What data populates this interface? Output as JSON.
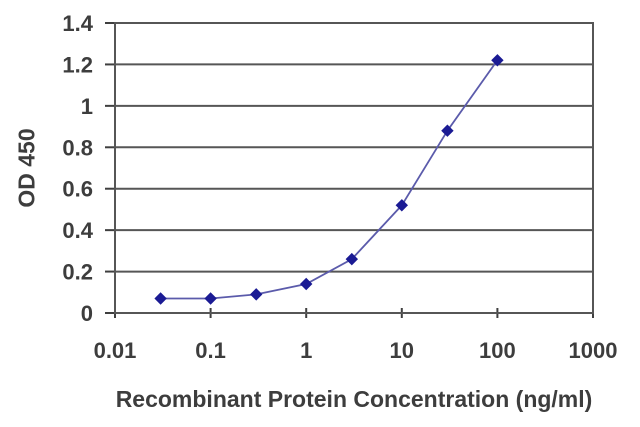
{
  "chart_data": {
    "type": "line",
    "title": "",
    "xlabel": "Recombinant Protein Concentration (ng/ml)",
    "ylabel": "OD 450",
    "x_scale": "log",
    "xlim": [
      0.01,
      1000
    ],
    "ylim": [
      0,
      1.4
    ],
    "x_ticks": [
      0.01,
      0.1,
      1,
      10,
      100,
      1000
    ],
    "x_tick_labels": [
      "0.01",
      "0.1",
      "1",
      "10",
      "100",
      "1000"
    ],
    "y_ticks": [
      0,
      0.2,
      0.4,
      0.6,
      0.8,
      1,
      1.2,
      1.4
    ],
    "y_tick_labels": [
      "0",
      "0.2",
      "0.4",
      "0.6",
      "0.8",
      "1",
      "1.2",
      "1.4"
    ],
    "grid": "horizontal",
    "legend": "none",
    "marker": "diamond",
    "series": [
      {
        "name": "OD 450",
        "x": [
          0.03,
          0.1,
          0.3,
          1,
          3,
          10,
          30,
          100
        ],
        "y": [
          0.07,
          0.07,
          0.09,
          0.14,
          0.26,
          0.52,
          0.88,
          1.22
        ]
      }
    ],
    "colors": {
      "line": "#5b5bab",
      "marker": "#1b1b94",
      "grid": "#565656",
      "frame": "#565656",
      "tick": "#3f3f3f",
      "text": "#3d3d3d",
      "background": "#ffffff"
    }
  }
}
